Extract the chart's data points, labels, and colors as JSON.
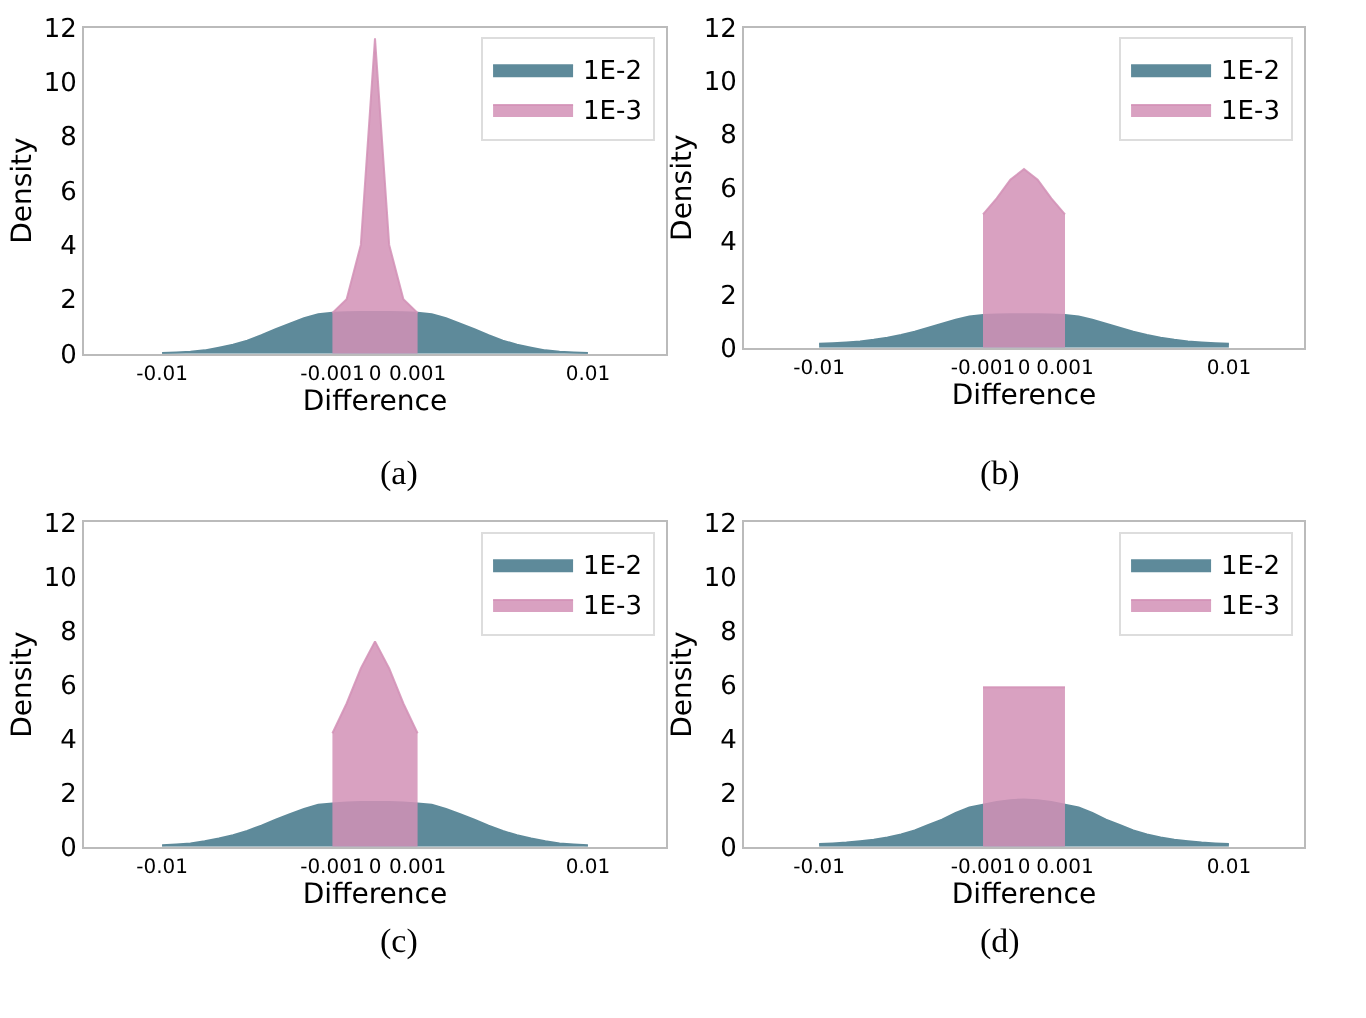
{
  "chart_data": [
    {
      "type": "area",
      "title": "(a)",
      "xlabel": "Difference",
      "ylabel": "Density",
      "ylim": [
        0,
        12
      ],
      "yticks": [
        0,
        2,
        4,
        6,
        8,
        10,
        12
      ],
      "legend": "top right",
      "categories": [
        null,
        null,
        null,
        null,
        null,
        "-0.01",
        null,
        null,
        null,
        null,
        null,
        null,
        null,
        null,
        null,
        null,
        null,
        "-0.001",
        null,
        null,
        "0",
        null,
        null,
        "0.001",
        null,
        null,
        null,
        null,
        null,
        null,
        null,
        null,
        null,
        null,
        null,
        "0.01",
        null,
        null,
        null,
        null,
        null
      ],
      "series": [
        {
          "name": "1E-2",
          "color": "#5e8a9a",
          "values": [
            null,
            null,
            null,
            null,
            null,
            0.02,
            0.04,
            0.07,
            0.12,
            0.22,
            0.33,
            0.48,
            0.68,
            0.9,
            1.1,
            1.3,
            1.45,
            1.5,
            1.52,
            1.53,
            1.53,
            1.53,
            1.52,
            1.5,
            1.45,
            1.3,
            1.1,
            0.9,
            0.68,
            0.48,
            0.33,
            0.22,
            0.12,
            0.07,
            0.04,
            0.02,
            null,
            null,
            null,
            null,
            null
          ]
        },
        {
          "name": "1E-3",
          "color": "#d291b6",
          "values": [
            null,
            null,
            null,
            null,
            null,
            null,
            null,
            null,
            null,
            null,
            null,
            null,
            null,
            null,
            null,
            null,
            null,
            1.5,
            2.0,
            4.0,
            11.6,
            4.0,
            2.0,
            1.5,
            null,
            null,
            null,
            null,
            null,
            null,
            null,
            null,
            null,
            null,
            null,
            null,
            null,
            null,
            null,
            null,
            null
          ]
        }
      ]
    },
    {
      "type": "area",
      "title": "(b)",
      "xlabel": "Difference",
      "ylabel": "Density",
      "ylim": [
        0,
        12
      ],
      "yticks": [
        0,
        2,
        4,
        6,
        8,
        10,
        12
      ],
      "legend": "top right",
      "categories": [
        null,
        null,
        null,
        null,
        null,
        "-0.01",
        null,
        null,
        null,
        null,
        null,
        null,
        null,
        null,
        null,
        null,
        null,
        "-0.001",
        null,
        null,
        "0",
        null,
        null,
        "0.001",
        null,
        null,
        null,
        null,
        null,
        null,
        null,
        null,
        null,
        null,
        null,
        "0.01",
        null,
        null,
        null,
        null,
        null
      ],
      "series": [
        {
          "name": "1E-2",
          "color": "#5e8a9a",
          "values": [
            null,
            null,
            null,
            null,
            null,
            0.15,
            0.17,
            0.2,
            0.24,
            0.3,
            0.38,
            0.48,
            0.6,
            0.75,
            0.9,
            1.05,
            1.17,
            1.23,
            1.25,
            1.26,
            1.26,
            1.26,
            1.25,
            1.23,
            1.17,
            1.05,
            0.9,
            0.75,
            0.6,
            0.48,
            0.38,
            0.3,
            0.24,
            0.2,
            0.17,
            0.15,
            null,
            null,
            null,
            null,
            null
          ]
        },
        {
          "name": "1E-3",
          "color": "#d291b6",
          "values": [
            null,
            null,
            null,
            null,
            null,
            null,
            null,
            null,
            null,
            null,
            null,
            null,
            null,
            null,
            null,
            null,
            null,
            5.0,
            5.6,
            6.3,
            6.7,
            6.3,
            5.6,
            5.0,
            null,
            null,
            null,
            null,
            null,
            null,
            null,
            null,
            null,
            null,
            null,
            null,
            null,
            null,
            null,
            null,
            null
          ]
        }
      ]
    },
    {
      "type": "area",
      "title": "(c)",
      "xlabel": "Difference",
      "ylabel": "Density",
      "ylim": [
        0,
        12
      ],
      "yticks": [
        0,
        2,
        4,
        6,
        8,
        10,
        12
      ],
      "legend": "top right",
      "categories": [
        null,
        null,
        null,
        null,
        null,
        "-0.01",
        null,
        null,
        null,
        null,
        null,
        null,
        null,
        null,
        null,
        null,
        null,
        "-0.001",
        null,
        null,
        "0",
        null,
        null,
        "0.001",
        null,
        null,
        null,
        null,
        null,
        null,
        null,
        null,
        null,
        null,
        null,
        "0.01",
        null,
        null,
        null,
        null,
        null
      ],
      "series": [
        {
          "name": "1E-2",
          "color": "#5e8a9a",
          "values": [
            null,
            null,
            null,
            null,
            null,
            0.05,
            0.08,
            0.12,
            0.2,
            0.3,
            0.42,
            0.58,
            0.78,
            1.0,
            1.2,
            1.4,
            1.55,
            1.6,
            1.63,
            1.65,
            1.65,
            1.65,
            1.63,
            1.6,
            1.55,
            1.4,
            1.2,
            1.0,
            0.78,
            0.58,
            0.42,
            0.3,
            0.2,
            0.12,
            0.08,
            0.05,
            null,
            null,
            null,
            null,
            null
          ]
        },
        {
          "name": "1E-3",
          "color": "#d291b6",
          "values": [
            null,
            null,
            null,
            null,
            null,
            null,
            null,
            null,
            null,
            null,
            null,
            null,
            null,
            null,
            null,
            null,
            null,
            4.2,
            5.3,
            6.6,
            7.6,
            6.6,
            5.3,
            4.2,
            null,
            null,
            null,
            null,
            null,
            null,
            null,
            null,
            null,
            null,
            null,
            null,
            null,
            null,
            null,
            null,
            null
          ]
        }
      ]
    },
    {
      "type": "area",
      "title": "(d)",
      "xlabel": "Difference",
      "ylabel": "Density",
      "ylim": [
        0,
        12
      ],
      "yticks": [
        0,
        2,
        4,
        6,
        8,
        10,
        12
      ],
      "legend": "top right",
      "categories": [
        null,
        null,
        null,
        null,
        null,
        "-0.01",
        null,
        null,
        null,
        null,
        null,
        null,
        null,
        null,
        null,
        null,
        null,
        "-0.001",
        null,
        null,
        "0",
        null,
        null,
        "0.001",
        null,
        null,
        null,
        null,
        null,
        null,
        null,
        null,
        null,
        null,
        null,
        "0.01",
        null,
        null,
        null,
        null,
        null
      ],
      "series": [
        {
          "name": "1E-2",
          "color": "#5e8a9a",
          "values": [
            null,
            null,
            null,
            null,
            null,
            0.1,
            0.12,
            0.15,
            0.2,
            0.26,
            0.34,
            0.45,
            0.6,
            0.8,
            1.0,
            1.25,
            1.45,
            1.55,
            1.65,
            1.72,
            1.75,
            1.72,
            1.65,
            1.55,
            1.45,
            1.25,
            1.0,
            0.8,
            0.6,
            0.45,
            0.34,
            0.26,
            0.2,
            0.15,
            0.12,
            0.1,
            null,
            null,
            null,
            null,
            null
          ]
        },
        {
          "name": "1E-3",
          "color": "#d291b6",
          "values": [
            null,
            null,
            null,
            null,
            null,
            null,
            null,
            null,
            null,
            null,
            null,
            null,
            null,
            null,
            null,
            null,
            null,
            5.9,
            5.9,
            5.9,
            5.9,
            5.9,
            5.9,
            5.9,
            null,
            null,
            null,
            null,
            null,
            null,
            null,
            null,
            null,
            null,
            null,
            null,
            null,
            null,
            null,
            null,
            null
          ]
        }
      ]
    }
  ]
}
